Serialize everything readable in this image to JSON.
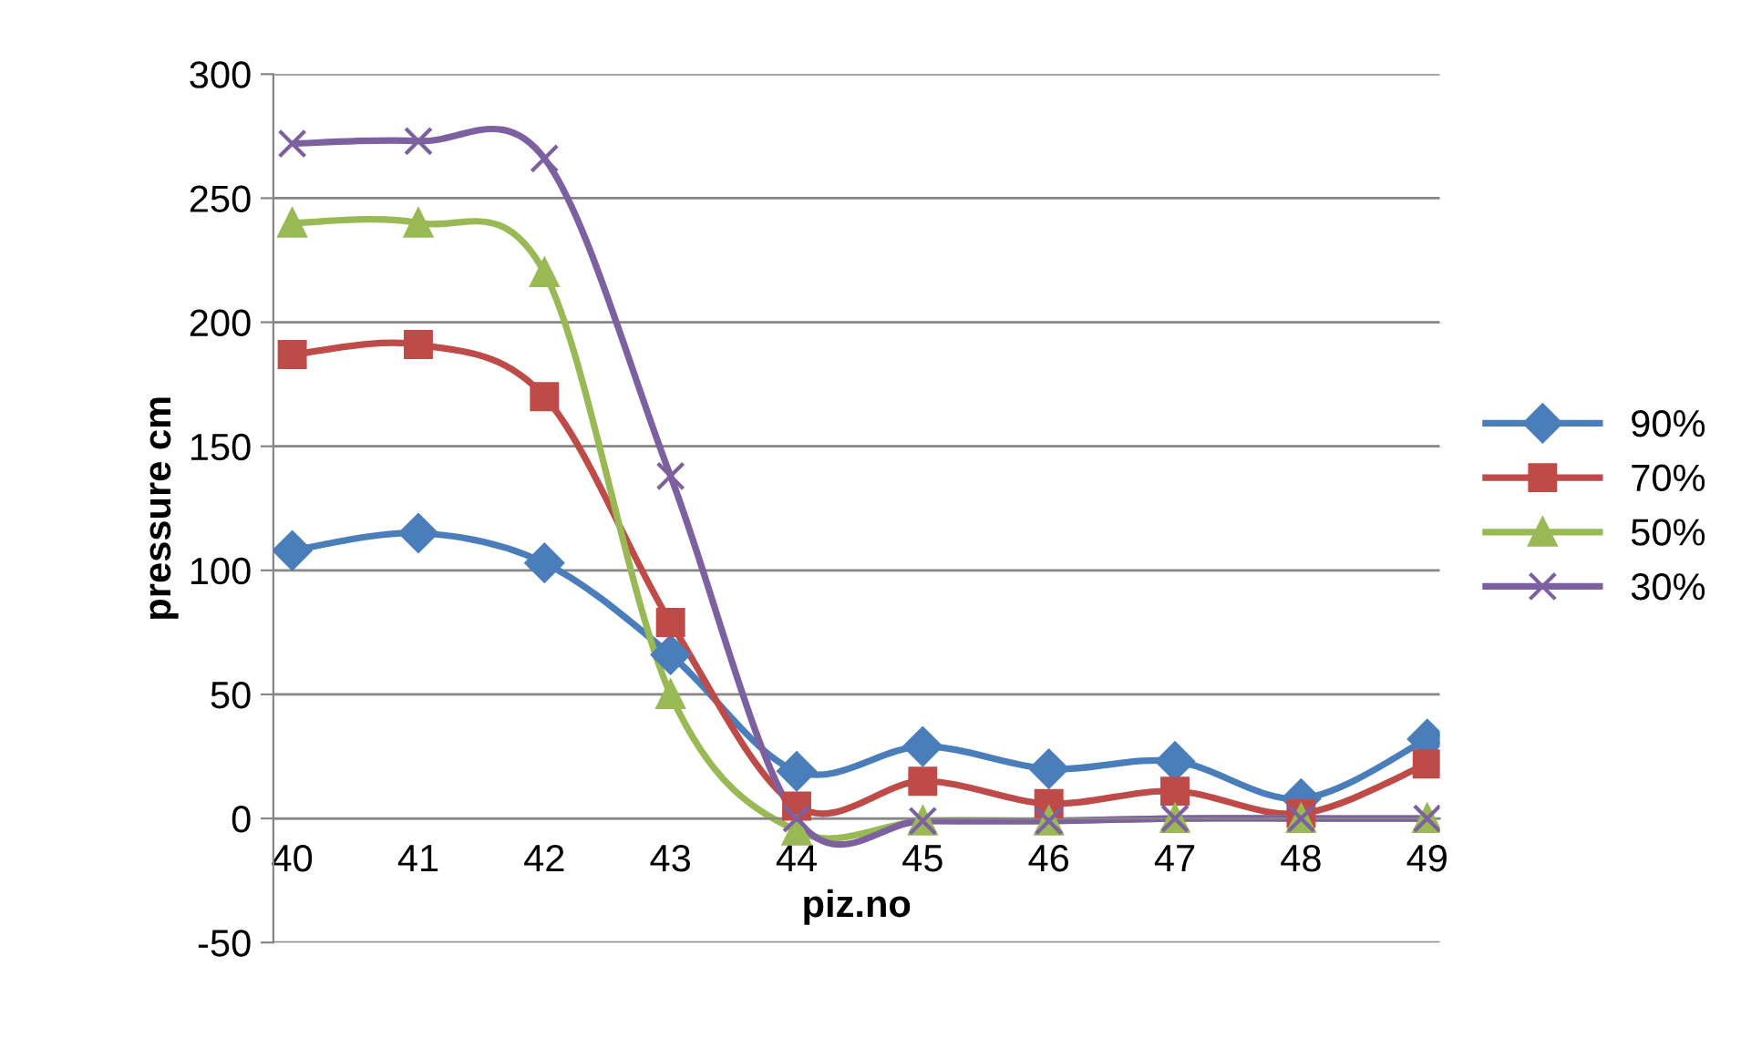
{
  "chart_data": {
    "type": "line",
    "xlabel": "piz.no",
    "ylabel": "pressure cm",
    "categories": [
      "40",
      "41",
      "42",
      "43",
      "44",
      "45",
      "46",
      "47",
      "48",
      "49"
    ],
    "series": [
      {
        "name": "90%",
        "color": "#4a7ebb",
        "marker": "diamond",
        "values": [
          108,
          115,
          103,
          66,
          19,
          29,
          20,
          23,
          8,
          32
        ]
      },
      {
        "name": "70%",
        "color": "#be4b48",
        "marker": "square",
        "values": [
          187,
          191,
          170,
          79,
          5,
          15,
          6,
          11,
          2,
          22
        ]
      },
      {
        "name": "50%",
        "color": "#98b954",
        "marker": "triangle",
        "values": [
          240,
          240,
          220,
          50,
          -5,
          -1,
          -1,
          0,
          0,
          0
        ]
      },
      {
        "name": "30%",
        "color": "#7d60a0",
        "marker": "cross",
        "values": [
          272,
          273,
          266,
          138,
          0,
          -1,
          -1,
          0,
          0,
          0
        ]
      }
    ],
    "ylim": [
      -50,
      300
    ],
    "yticks": [
      -50,
      0,
      50,
      100,
      150,
      200,
      250,
      300
    ],
    "grid": "y",
    "legend": "right",
    "line_style": "solid"
  }
}
